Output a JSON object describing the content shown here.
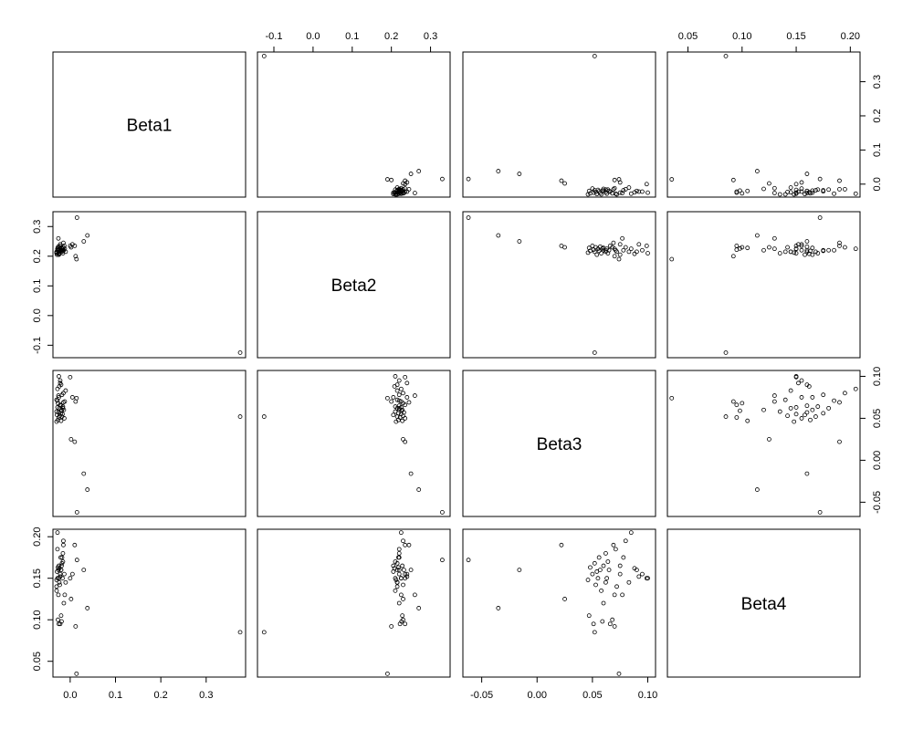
{
  "chart_data": {
    "type": "pairs",
    "variables": [
      {
        "name": "Beta1",
        "lim": [
          -0.038,
          0.387
        ],
        "ticks": [
          {
            "value": 0,
            "label": "0.0"
          },
          0.1,
          0.2,
          0.3
        ],
        "values": [
          0.375,
          0.015,
          0.038,
          0.03,
          0.014,
          0.002,
          0.01,
          0.012,
          0.005,
          -0.025,
          -0.022,
          -0.02,
          -0.028,
          -0.015,
          -0.018,
          -0.025,
          -0.03,
          -0.012,
          -0.027,
          -0.022,
          -0.02,
          -0.016,
          -0.028,
          -0.024,
          -0.019,
          -0.014,
          -0.03,
          -0.026,
          -0.021,
          -0.017,
          -0.029,
          -0.023,
          -0.018,
          -0.025,
          -0.013,
          -0.027,
          -0.02,
          -0.03,
          -0.016,
          -0.022,
          -0.026,
          -0.015,
          -0.024,
          -0.019,
          -0.028,
          0,
          -0.01
        ]
      },
      {
        "name": "Beta2",
        "lim": [
          -0.142,
          0.35
        ],
        "ticks": [
          -0.1,
          {
            "value": 0,
            "label": "0.0"
          },
          0.1,
          0.2,
          0.3
        ],
        "values": [
          -0.125,
          0.33,
          0.27,
          0.25,
          0.19,
          0.23,
          0.235,
          0.2,
          0.24,
          0.21,
          0.22,
          0.215,
          0.225,
          0.23,
          0.22,
          0.205,
          0.215,
          0.225,
          0.23,
          0.235,
          0.22,
          0.21,
          0.225,
          0.215,
          0.228,
          0.22,
          0.21,
          0.232,
          0.218,
          0.225,
          0.205,
          0.23,
          0.215,
          0.222,
          0.235,
          0.218,
          0.228,
          0.212,
          0.22,
          0.24,
          0.26,
          0.245,
          0.208,
          0.226,
          0.22,
          0.235,
          0.215
        ]
      },
      {
        "name": "Beta3",
        "lim": [
          -0.067,
          0.107
        ],
        "ticks": [
          -0.05,
          {
            "value": 0,
            "label": "0.00"
          },
          0.05,
          {
            "value": 0.1,
            "label": "0.10"
          }
        ],
        "values": [
          0.052,
          -0.062,
          -0.035,
          -0.016,
          0.074,
          0.025,
          0.022,
          0.07,
          0.075,
          0.1,
          0.095,
          0.09,
          0.085,
          0.08,
          0.078,
          0.075,
          0.072,
          0.07,
          0.068,
          0.066,
          0.065,
          0.064,
          0.063,
          0.062,
          0.06,
          0.06,
          0.058,
          0.057,
          0.056,
          0.055,
          0.054,
          0.053,
          0.052,
          0.051,
          0.05,
          0.048,
          0.047,
          0.046,
          0.062,
          0.092,
          0.077,
          0.069,
          0.088,
          0.059,
          0.071,
          0.099,
          0.083
        ]
      },
      {
        "name": "Beta4",
        "lim": [
          0.031,
          0.209
        ],
        "ticks": [
          0.05,
          {
            "value": 0.1,
            "label": "0.10"
          },
          0.15,
          {
            "value": 0.2,
            "label": "0.20"
          }
        ],
        "values": [
          0.085,
          0.172,
          0.114,
          0.16,
          0.035,
          0.125,
          0.19,
          0.092,
          0.155,
          0.15,
          0.155,
          0.16,
          0.205,
          0.195,
          0.175,
          0.165,
          0.14,
          0.13,
          0.1,
          0.095,
          0.16,
          0.17,
          0.15,
          0.145,
          0.165,
          0.12,
          0.135,
          0.16,
          0.175,
          0.15,
          0.158,
          0.142,
          0.168,
          0.095,
          0.155,
          0.163,
          0.105,
          0.148,
          0.18,
          0.152,
          0.13,
          0.19,
          0.162,
          0.098,
          0.185,
          0.15,
          0.145
        ]
      }
    ]
  }
}
